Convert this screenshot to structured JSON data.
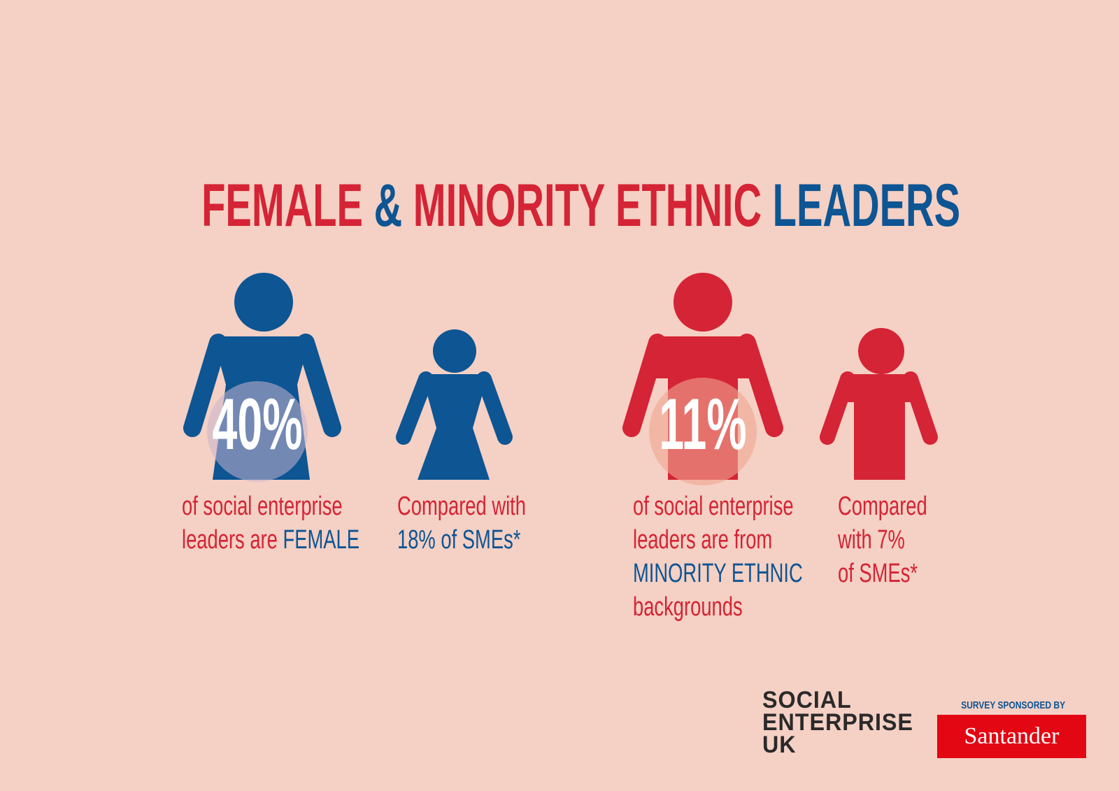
{
  "title": [
    {
      "text": "FEMALE ",
      "color": "#d42435"
    },
    {
      "text": "& ",
      "color": "#0d5593"
    },
    {
      "text": "MINORITY ETHNIC ",
      "color": "#d42435"
    },
    {
      "text": "LEADERS",
      "color": "#0d5593"
    }
  ],
  "panels": [
    {
      "stat": "40%",
      "description": [
        [
          {
            "text": "of social enterprise",
            "color": "#d42435"
          }
        ],
        [
          {
            "text": "leaders are ",
            "color": "#d42435"
          },
          {
            "text": "FEMALE",
            "color": "#0d5593"
          }
        ]
      ],
      "comparison": [
        [
          {
            "text": "Compared with",
            "color": "#d42435"
          }
        ],
        [
          {
            "text": "18% of SMEs*",
            "color": "#0d5593"
          }
        ]
      ]
    },
    {
      "stat": "11%",
      "description": [
        [
          {
            "text": "of social enterprise",
            "color": "#d42435"
          }
        ],
        [
          {
            "text": "leaders are from",
            "color": "#d42435"
          }
        ],
        [
          {
            "text": "MINORITY ETHNIC",
            "color": "#0d5593"
          }
        ],
        [
          {
            "text": "backgrounds",
            "color": "#d42435"
          }
        ]
      ],
      "comparison": [
        [
          {
            "text": "Compared",
            "color": "#d42435"
          }
        ],
        [
          {
            "text": "with 7%",
            "color": "#d42435"
          }
        ],
        [
          {
            "text": "of SMEs*",
            "color": "#d42435"
          }
        ]
      ]
    }
  ],
  "footer": {
    "logo": [
      "SOCIAL",
      "ENTERPRISE",
      "UK"
    ],
    "sponsor_label": "SURVEY SPONSORED BY",
    "sponsor": "Santander"
  }
}
